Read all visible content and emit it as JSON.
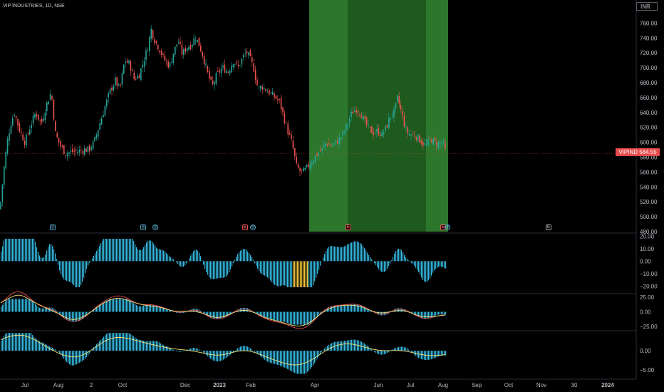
{
  "header": {
    "title": "VIP INDUSTRIES, 1D, NSE"
  },
  "currency": "INR",
  "last_price_label": "VIPIND  584.55",
  "events": [
    {
      "kind": "d",
      "glyph": "◎",
      "name": "dividend-marker"
    },
    {
      "kind": "d",
      "glyph": "◎",
      "name": "dividend-marker"
    },
    {
      "kind": "c",
      "glyph": "◎",
      "name": "corporate-action-marker"
    },
    {
      "kind": "e",
      "glyph": "E",
      "name": "earnings-marker"
    },
    {
      "kind": "c",
      "glyph": "◎",
      "name": "corporate-action-marker"
    },
    {
      "kind": "e",
      "glyph": "E",
      "name": "earnings-marker"
    },
    {
      "kind": "e",
      "glyph": "E",
      "name": "earnings-marker"
    },
    {
      "kind": "c",
      "glyph": "◎",
      "name": "corporate-action-marker"
    },
    {
      "kind": "f",
      "glyph": "E",
      "name": "future-earnings-marker"
    }
  ],
  "colors": {
    "up": "#26a69a",
    "down": "#ef5350",
    "hist": "#35b9e0",
    "hist_highlight": "#f0c53c",
    "highlight_zone": "#1e5a1e",
    "highlight_zone_light": "#2d7a2d",
    "signal_red": "#e84a4a",
    "signal_yellow": "#f6e27a"
  },
  "chart_data": [
    {
      "type": "candlestick",
      "name": "price",
      "ylim": [
        480,
        770
      ],
      "y_ticks": [
        "760.00",
        "740.00",
        "720.00",
        "700.00",
        "680.00",
        "660.00",
        "640.00",
        "620.00",
        "600.00",
        "580.00",
        "560.00",
        "540.00",
        "520.00",
        "500.00",
        "480.00"
      ],
      "x_ticks": [
        "Jul",
        "Aug",
        "2",
        "Oct",
        "Dec",
        "2023",
        "Feb",
        "Apr",
        "Jun",
        "Jul",
        "Aug",
        "Sep",
        "Oct",
        "Nov",
        "30",
        "2024"
      ],
      "highlight_ranges": [
        [
          "Mar-end",
          "Aug-start"
        ]
      ],
      "last_price": 584.55,
      "path_points": [
        [
          0,
          510
        ],
        [
          5,
          560
        ],
        [
          10,
          600
        ],
        [
          15,
          625
        ],
        [
          20,
          640
        ],
        [
          28,
          615
        ],
        [
          35,
          600
        ],
        [
          42,
          620
        ],
        [
          50,
          640
        ],
        [
          58,
          625
        ],
        [
          65,
          650
        ],
        [
          72,
          668
        ],
        [
          78,
          610
        ],
        [
          85,
          595
        ],
        [
          92,
          585
        ],
        [
          100,
          587
        ],
        [
          110,
          588
        ],
        [
          118,
          590
        ],
        [
          125,
          590
        ],
        [
          132,
          600
        ],
        [
          140,
          625
        ],
        [
          148,
          650
        ],
        [
          155,
          670
        ],
        [
          162,
          683
        ],
        [
          168,
          670
        ],
        [
          175,
          710
        ],
        [
          182,
          705
        ],
        [
          188,
          685
        ],
        [
          195,
          690
        ],
        [
          202,
          710
        ],
        [
          208,
          730
        ],
        [
          212,
          752
        ],
        [
          218,
          735
        ],
        [
          224,
          725
        ],
        [
          230,
          712
        ],
        [
          238,
          702
        ],
        [
          244,
          722
        ],
        [
          250,
          736
        ],
        [
          256,
          718
        ],
        [
          262,
          728
        ],
        [
          268,
          730
        ],
        [
          274,
          742
        ],
        [
          280,
          730
        ],
        [
          286,
          712
        ],
        [
          292,
          690
        ],
        [
          298,
          675
        ],
        [
          304,
          690
        ],
        [
          312,
          700
        ],
        [
          320,
          695
        ],
        [
          328,
          710
        ],
        [
          334,
          700
        ],
        [
          340,
          712
        ],
        [
          346,
          722
        ],
        [
          350,
          714
        ],
        [
          356,
          700
        ],
        [
          362,
          672
        ],
        [
          368,
          675
        ],
        [
          374,
          670
        ],
        [
          380,
          665
        ],
        [
          386,
          660
        ],
        [
          392,
          655
        ],
        [
          398,
          635
        ],
        [
          404,
          615
        ],
        [
          410,
          598
        ],
        [
          416,
          568
        ],
        [
          422,
          560
        ],
        [
          428,
          562
        ],
        [
          434,
          570
        ],
        [
          440,
          578
        ],
        [
          446,
          585
        ],
        [
          452,
          590
        ],
        [
          458,
          600
        ],
        [
          464,
          595
        ],
        [
          470,
          598
        ],
        [
          476,
          604
        ],
        [
          482,
          612
        ],
        [
          488,
          625
        ],
        [
          494,
          640
        ],
        [
          500,
          645
        ],
        [
          506,
          640
        ],
        [
          512,
          627
        ],
        [
          518,
          617
        ],
        [
          524,
          613
        ],
        [
          530,
          615
        ],
        [
          536,
          610
        ],
        [
          542,
          620
        ],
        [
          548,
          635
        ],
        [
          554,
          642
        ],
        [
          558,
          660
        ],
        [
          562,
          645
        ],
        [
          566,
          630
        ],
        [
          570,
          615
        ],
        [
          576,
          610
        ],
        [
          582,
          610
        ],
        [
          588,
          605
        ],
        [
          594,
          598
        ],
        [
          598,
          595
        ],
        [
          604,
          605
        ],
        [
          610,
          600
        ],
        [
          616,
          598
        ],
        [
          622,
          600
        ],
        [
          626,
          584.55
        ]
      ]
    },
    {
      "type": "histogram",
      "name": "oscillator-1",
      "ylim": [
        -25,
        22
      ],
      "y_ticks": [
        "20.00",
        "10.00",
        "0.00",
        "−10.00",
        "−20.00"
      ],
      "highlight_x_range": [
        410,
        432
      ]
    },
    {
      "type": "histogram-with-lines",
      "name": "oscillator-2",
      "ylim": [
        -30,
        30
      ],
      "y_ticks": [
        "25.00",
        "0.00",
        "−25.00"
      ],
      "series": [
        {
          "color": "red"
        },
        {
          "color": "yellow"
        }
      ]
    },
    {
      "type": "histogram-with-lines",
      "name": "oscillator-3",
      "ylim": [
        -7,
        5
      ],
      "y_ticks": [
        "0.00",
        "−5.00"
      ],
      "series": [
        {
          "color": "yellow"
        }
      ]
    }
  ]
}
